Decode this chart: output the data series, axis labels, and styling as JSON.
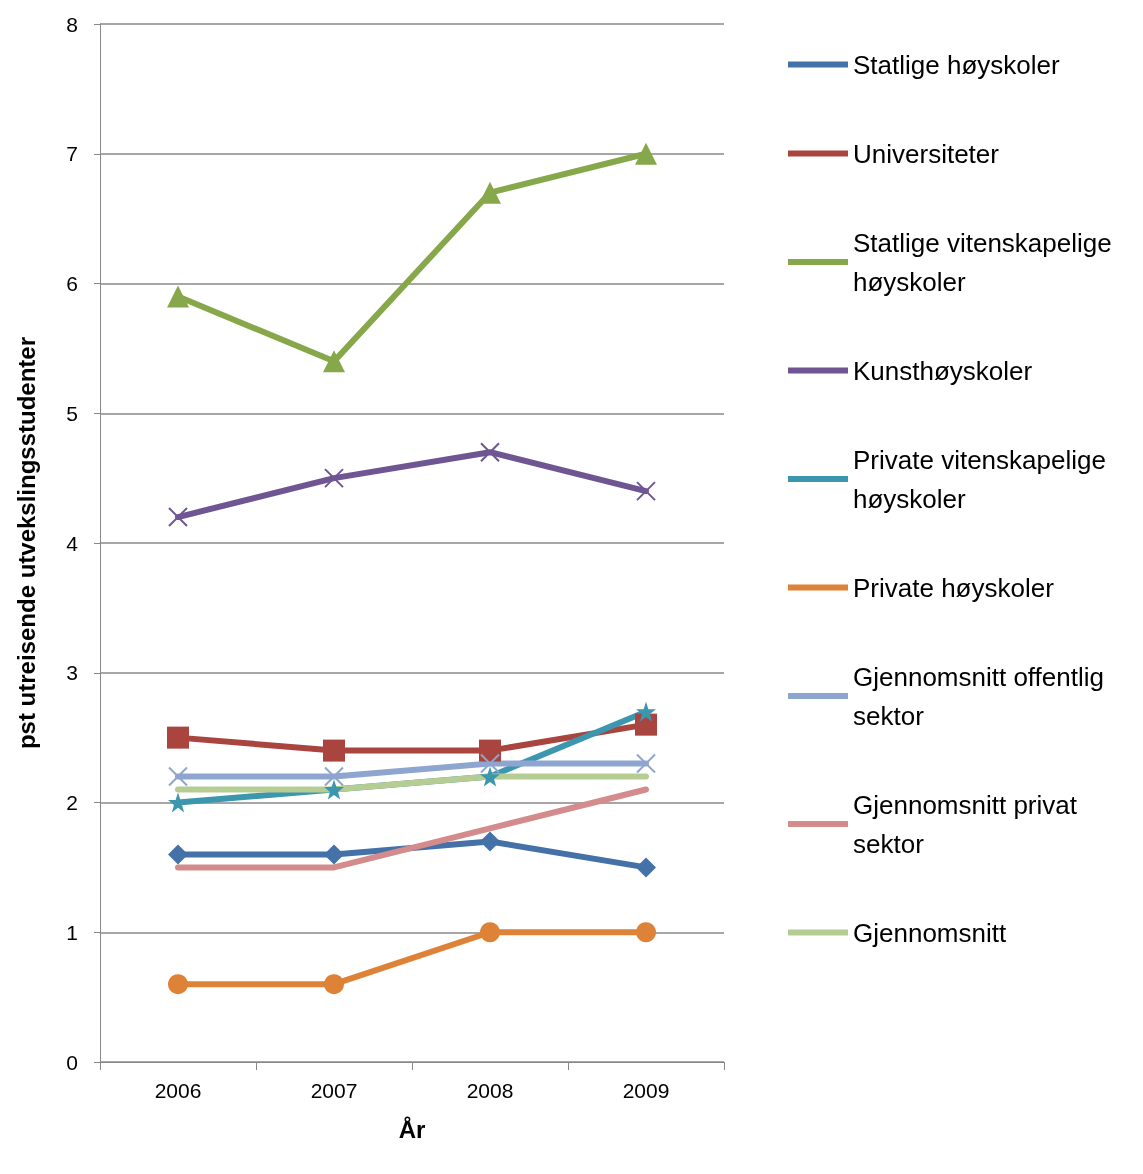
{
  "chart_data": {
    "type": "line",
    "xlabel": "År",
    "ylabel": "pst utreisende utvekslingsstudenter",
    "categories": [
      "2006",
      "2007",
      "2008",
      "2009"
    ],
    "ylim": [
      0,
      8
    ],
    "yticks": [
      0,
      1,
      2,
      3,
      4,
      5,
      6,
      7,
      8
    ],
    "grid": "y",
    "legend": "right",
    "line_style": "solid",
    "series": [
      {
        "name": "Statlige høyskoler",
        "color": "#4371a8",
        "marker": "diamond",
        "values": [
          1.6,
          1.6,
          1.7,
          1.5
        ]
      },
      {
        "name": "Universiteter",
        "color": "#a9443f",
        "marker": "square",
        "values": [
          2.5,
          2.4,
          2.4,
          2.6
        ]
      },
      {
        "name": "Statlige vitenskapelige høyskoler",
        "color": "#87a84a",
        "marker": "triangle",
        "values": [
          5.9,
          5.4,
          6.7,
          7.0
        ]
      },
      {
        "name": "Kunsthøyskoler",
        "color": "#6f5693",
        "marker": "cross",
        "values": [
          4.2,
          4.5,
          4.7,
          4.4
        ]
      },
      {
        "name": "Private vitenskapelige høyskoler",
        "color": "#3c97ae",
        "marker": "star",
        "values": [
          2.0,
          2.1,
          2.2,
          2.7
        ]
      },
      {
        "name": "Private høyskoler",
        "color": "#dd8236",
        "marker": "circle",
        "values": [
          0.6,
          0.6,
          1.0,
          1.0
        ]
      },
      {
        "name": "Gjennomsnitt offentlig sektor",
        "color": "#8ea5cf",
        "marker": "cross",
        "values": [
          2.2,
          2.2,
          2.3,
          2.3
        ]
      },
      {
        "name": "Gjennomsnitt privat sektor",
        "color": "#d38b8b",
        "marker": "none",
        "values": [
          1.5,
          1.5,
          1.8,
          2.1
        ]
      },
      {
        "name": "Gjennomsnitt",
        "color": "#b5cd93",
        "marker": "none",
        "values": [
          2.1,
          2.1,
          2.2,
          2.2
        ]
      }
    ]
  }
}
